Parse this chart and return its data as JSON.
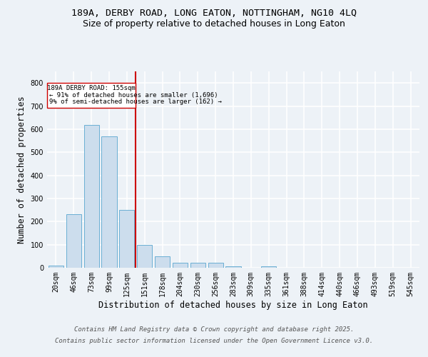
{
  "title_line1": "189A, DERBY ROAD, LONG EATON, NOTTINGHAM, NG10 4LQ",
  "title_line2": "Size of property relative to detached houses in Long Eaton",
  "xlabel": "Distribution of detached houses by size in Long Eaton",
  "ylabel": "Number of detached properties",
  "categories": [
    "20sqm",
    "46sqm",
    "73sqm",
    "99sqm",
    "125sqm",
    "151sqm",
    "178sqm",
    "204sqm",
    "230sqm",
    "256sqm",
    "283sqm",
    "309sqm",
    "335sqm",
    "361sqm",
    "388sqm",
    "414sqm",
    "440sqm",
    "466sqm",
    "493sqm",
    "519sqm",
    "545sqm"
  ],
  "values": [
    10,
    232,
    618,
    570,
    250,
    98,
    48,
    22,
    22,
    22,
    5,
    0,
    5,
    0,
    0,
    0,
    0,
    0,
    0,
    0,
    0
  ],
  "bar_color": "#ccdded",
  "bar_edge_color": "#6aafd4",
  "red_line_x": 4.5,
  "annotation_line1": "189A DERBY ROAD: 155sqm",
  "annotation_line2": "← 91% of detached houses are smaller (1,696)",
  "annotation_line3": "9% of semi-detached houses are larger (162) →",
  "ylim": [
    0,
    850
  ],
  "yticks": [
    0,
    100,
    200,
    300,
    400,
    500,
    600,
    700,
    800
  ],
  "footer_line1": "Contains HM Land Registry data © Crown copyright and database right 2025.",
  "footer_line2": "Contains public sector information licensed under the Open Government Licence v3.0.",
  "bg_color": "#edf2f7",
  "plot_bg_color": "#edf2f7",
  "grid_color": "#ffffff",
  "title_fontsize": 9.5,
  "subtitle_fontsize": 9,
  "axis_label_fontsize": 8.5,
  "tick_fontsize": 7,
  "footer_fontsize": 6.5
}
